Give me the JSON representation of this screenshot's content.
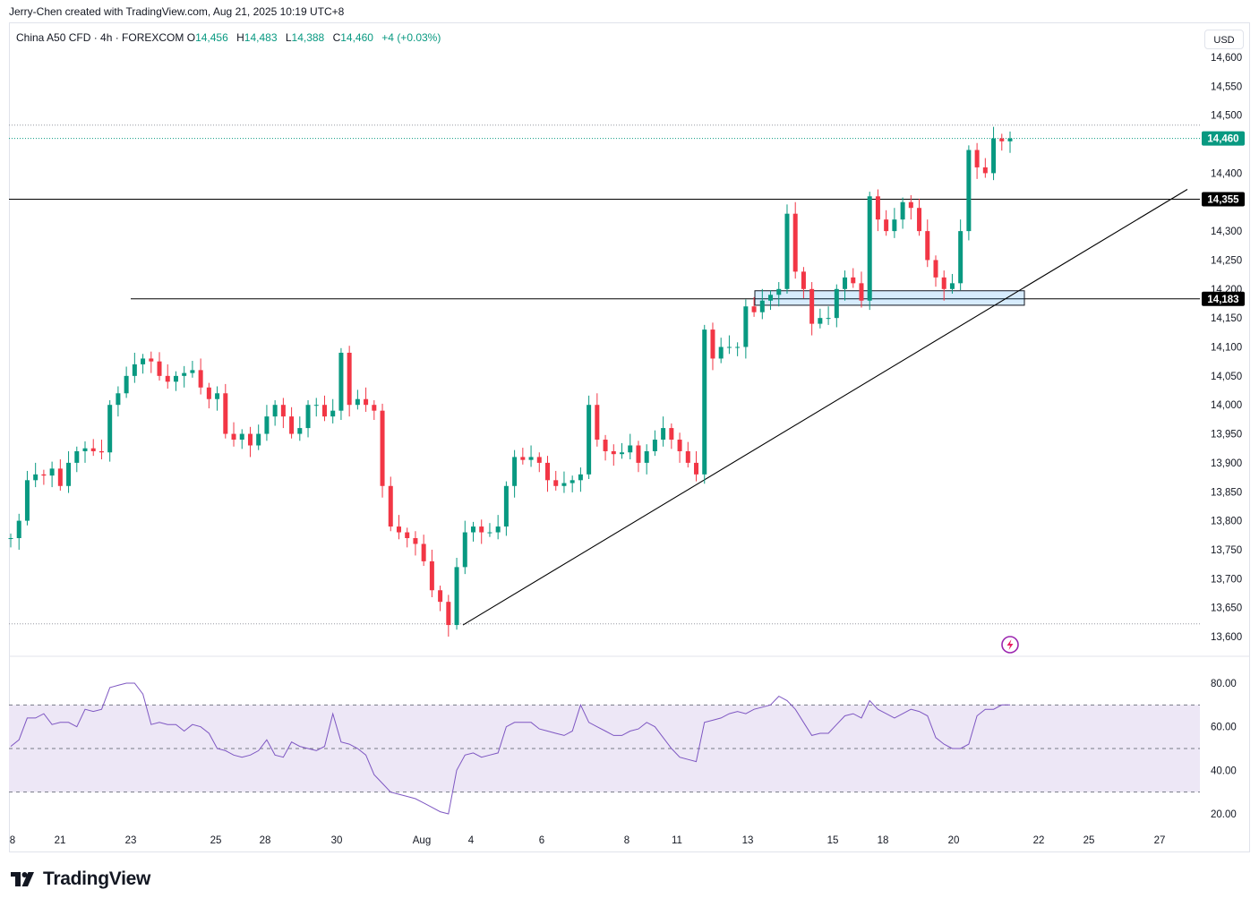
{
  "header": {
    "credit": "Jerry-Chen created with TradingView.com, Aug 21, 2025 10:19 UTC+8",
    "symbol": "China A50 CFD · 4h · FOREXCOM",
    "o_label": "O",
    "o_value": "14,456",
    "h_label": "H",
    "h_value": "14,483",
    "l_label": "L",
    "l_value": "14,388",
    "c_label": "C",
    "c_value": "14,460",
    "change": "+4 (+0.03%)",
    "currency": "USD"
  },
  "branding": {
    "logo_text": "TradingView"
  },
  "colors": {
    "up": "#089981",
    "down": "#f23645",
    "rsi": "#7e57c2",
    "rsi_band": "#ede7f6",
    "accent": "#9c27b0"
  },
  "chart_data": [
    {
      "type": "candlestick",
      "title": "China A50 CFD · 4h · FOREXCOM",
      "ylim": [
        13580,
        14640
      ],
      "y_ticks": [
        "14,600",
        "14,550",
        "14,500",
        "14,400",
        "14,300",
        "14,250",
        "14,200",
        "14,150",
        "14,100",
        "14,050",
        "14,000",
        "13,950",
        "13,900",
        "13,850",
        "13,800",
        "13,750",
        "13,700",
        "13,650",
        "13,600"
      ],
      "x_ticks": [
        "8",
        "21",
        "23",
        "25",
        "28",
        "30",
        "Aug",
        "4",
        "6",
        "8",
        "11",
        "13",
        "15",
        "18",
        "20",
        "22",
        "25",
        "27"
      ],
      "price_tags": [
        {
          "label": "14,460",
          "value": 14460,
          "style": "last"
        },
        {
          "label": "14,355",
          "value": 14355,
          "style": "level"
        },
        {
          "label": "14,183",
          "value": 14183,
          "style": "level"
        }
      ],
      "horizontal_lines": [
        14355,
        14183
      ],
      "dotted_lines": [
        14460,
        14483,
        13622
      ],
      "zone": {
        "from": 14172,
        "to": 14197
      },
      "trendline": {
        "from": 13620,
        "to": 14372
      },
      "close": [
        13770,
        13800,
        13870,
        13880,
        13878,
        13890,
        13860,
        13900,
        13920,
        13925,
        13920,
        13918,
        14000,
        14020,
        14050,
        14070,
        14080,
        14075,
        14050,
        14040,
        14050,
        14055,
        14060,
        14030,
        14010,
        14020,
        13950,
        13940,
        13950,
        13930,
        13950,
        13980,
        14000,
        13980,
        13950,
        13960,
        14000,
        14000,
        13980,
        13990,
        14090,
        14000,
        14010,
        14000,
        13990,
        13860,
        13790,
        13780,
        13770,
        13760,
        13730,
        13680,
        13660,
        13620,
        13720,
        13780,
        13790,
        13780,
        13780,
        13790,
        13860,
        13910,
        13905,
        13910,
        13900,
        13870,
        13860,
        13865,
        13870,
        13880,
        14000,
        13940,
        13920,
        13915,
        13918,
        13930,
        13900,
        13920,
        13940,
        13960,
        13940,
        13920,
        13900,
        13880,
        14130,
        14080,
        14100,
        14100,
        14100,
        14170,
        14160,
        14180,
        14190,
        14200,
        14330,
        14230,
        14200,
        14140,
        14150,
        14150,
        14200,
        14220,
        14210,
        14180,
        14360,
        14320,
        14300,
        14320,
        14350,
        14340,
        14300,
        14250,
        14220,
        14200,
        14210,
        14300,
        14440,
        14410,
        14400,
        14460,
        14455,
        14460
      ],
      "rsi": {
        "ylim": [
          15,
          85
        ],
        "y_ticks": [
          "80.00",
          "60.00",
          "40.00",
          "20.00"
        ],
        "upper": 70,
        "mid": 50,
        "lower": 30,
        "values": [
          51,
          54,
          64,
          64,
          66,
          61,
          62,
          62,
          60,
          68,
          67,
          68,
          78,
          79,
          80,
          80,
          75,
          61,
          62,
          61,
          61,
          58,
          61,
          60,
          57,
          50,
          49,
          47,
          46,
          47,
          49,
          54,
          47,
          46,
          53,
          51,
          50,
          49,
          51,
          66,
          53,
          52,
          50,
          47,
          38,
          34,
          30,
          29,
          28,
          27,
          25,
          23,
          21,
          20,
          40,
          47,
          48,
          46,
          47,
          48,
          60,
          62,
          62,
          62,
          59,
          58,
          57,
          56,
          58,
          70,
          62,
          60,
          58,
          56,
          56,
          58,
          59,
          62,
          60,
          55,
          50,
          46,
          45,
          44,
          62,
          63,
          64,
          66,
          67,
          66,
          68,
          69,
          70,
          74,
          72,
          68,
          62,
          56,
          57,
          57,
          61,
          65,
          66,
          64,
          72,
          68,
          66,
          64,
          66,
          68,
          67,
          65,
          55,
          52,
          50,
          50,
          52,
          65,
          68,
          68,
          70,
          70
        ]
      }
    }
  ]
}
